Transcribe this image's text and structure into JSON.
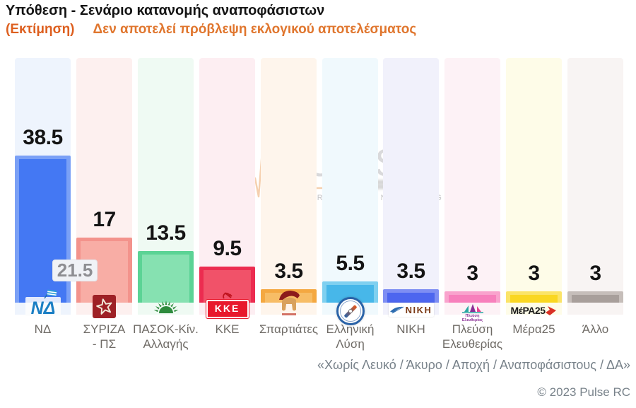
{
  "header": {
    "title": "Υπόθεση - Σενάριο κατανομής αναποφάσιστων",
    "estimate_tag": "(Εκτίμηση)",
    "disclaimer": "Δεν αποτελεί πρόβλεψη εκλογικού αποτελέσματος"
  },
  "watermark": {
    "brand": "PULSE",
    "tagline": "RESEARCH & CONSULTING"
  },
  "chart_data": {
    "type": "bar",
    "title": "Υπόθεση - Σενάριο κατανομής αναποφάσιστων",
    "categories": [
      "ΝΔ",
      "ΣΥΡΙΖΑ - ΠΣ",
      "ΠΑΣΟΚ-Κίν. Αλλαγής",
      "ΚΚΕ",
      "Σπαρτιάτες",
      "Ελληνική Λύση",
      "ΝΙΚΗ",
      "Πλεύση Ελευθερίας",
      "Μέρα25",
      "Άλλο"
    ],
    "values": [
      38.5,
      17,
      13.5,
      9.5,
      3.5,
      5.5,
      3.5,
      3,
      3,
      3
    ],
    "value_labels": [
      "38.5",
      "17",
      "13.5",
      "9.5",
      "3.5",
      "5.5",
      "3.5",
      "3",
      "3",
      "3"
    ],
    "annotations": [
      {
        "category": "ΝΔ",
        "label": "21.5"
      }
    ],
    "ylim": [
      0,
      67
    ],
    "grid": false,
    "legend": false,
    "xlabel": "",
    "ylabel": ""
  },
  "parties": [
    {
      "label_lines": [
        "ΝΔ"
      ],
      "value_label": "38.5",
      "bar_color": "#7aa0f6",
      "bar_inner": "#4478f3",
      "column_bg": "#eef4fd",
      "logo": "nd",
      "logo_text": "ΝΔ"
    },
    {
      "label_lines": [
        "ΣΥΡΙΖΑ",
        "- ΠΣ"
      ],
      "value_label": "17",
      "bar_color": "#f3938c",
      "bar_inner": "#f8ada5",
      "column_bg": "#fdf0ef",
      "logo": "syriza"
    },
    {
      "label_lines": [
        "ΠΑΣΟΚ-Κίν.",
        "Αλλαγής"
      ],
      "value_label": "13.5",
      "bar_color": "#5bd395",
      "bar_inner": "#86e1b1",
      "column_bg": "#effaf3",
      "logo": "pasok"
    },
    {
      "label_lines": [
        "ΚΚΕ"
      ],
      "value_label": "9.5",
      "bar_color": "#ec2c50",
      "bar_inner": "#f15269",
      "column_bg": "#fdeef2",
      "logo": "kke",
      "logo_text": "ΚΚΕ"
    },
    {
      "label_lines": [
        "Σπαρτιάτες"
      ],
      "value_label": "3.5",
      "bar_color": "#f4a841",
      "bar_inner": "#f7bd66",
      "column_bg": "#fef5ec",
      "logo": "spartiates"
    },
    {
      "label_lines": [
        "Ελληνική",
        "Λύση"
      ],
      "value_label": "5.5",
      "bar_color": "#7fd0f0",
      "bar_inner": "#47b7e9",
      "column_bg": "#f0f9fd",
      "logo": "ellysi"
    },
    {
      "label_lines": [
        "ΝΙΚΗ"
      ],
      "value_label": "3.5",
      "bar_color": "#7e8ef3",
      "bar_inner": "#4d66ef",
      "column_bg": "#f1f1fb",
      "logo": "niki",
      "logo_text": "ΝΙΚΗ"
    },
    {
      "label_lines": [
        "Πλεύση",
        "Ελευθερίας"
      ],
      "value_label": "3",
      "bar_color": "#f9a3cd",
      "bar_inner": "#f780bc",
      "column_bg": "#fdf2f6",
      "logo": "plefsi",
      "logo_caption_lines": [
        "Πλεύση",
        "Ελευθερίας"
      ]
    },
    {
      "label_lines": [
        "Μέρα25"
      ],
      "value_label": "3",
      "bar_color": "#fbe468",
      "bar_inner": "#fad722",
      "column_bg": "#fefce8",
      "logo": "mera25",
      "logo_text": "ΜέΡΑ25"
    },
    {
      "label_lines": [
        "Άλλο"
      ],
      "value_label": "3",
      "bar_color": "#c6beba",
      "bar_inner": "#a89f9b",
      "column_bg": "#f8f4f3",
      "logo": "none"
    }
  ],
  "footer": {
    "note": "«Χωρίς Λευκό / Άκυρο / Αποχή / Αναποφάσιστους / ΔΑ»",
    "copyright": "© 2023 Pulse RC"
  }
}
